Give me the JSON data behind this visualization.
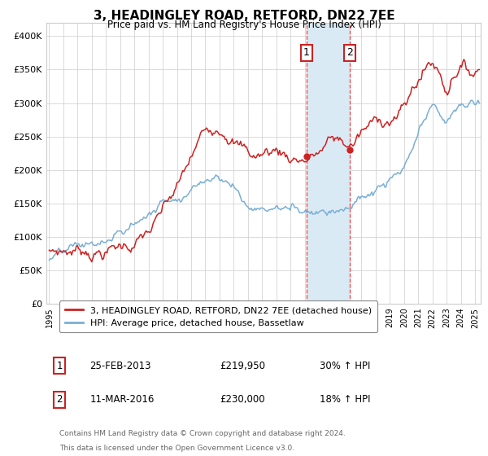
{
  "title": "3, HEADINGLEY ROAD, RETFORD, DN22 7EE",
  "subtitle": "Price paid vs. HM Land Registry's House Price Index (HPI)",
  "ylabel_ticks": [
    "£0",
    "£50K",
    "£100K",
    "£150K",
    "£200K",
    "£250K",
    "£300K",
    "£350K",
    "£400K"
  ],
  "ytick_values": [
    0,
    50000,
    100000,
    150000,
    200000,
    250000,
    300000,
    350000,
    400000
  ],
  "ylim": [
    0,
    420000
  ],
  "xlim_start": 1994.8,
  "xlim_end": 2025.4,
  "transaction1_date": 2013.13,
  "transaction1_price": 219950,
  "transaction1_label": "1",
  "transaction1_text": "25-FEB-2013",
  "transaction1_amount": "£219,950",
  "transaction1_hpi": "30% ↑ HPI",
  "transaction2_date": 2016.19,
  "transaction2_price": 230000,
  "transaction2_label": "2",
  "transaction2_text": "11-MAR-2016",
  "transaction2_amount": "£230,000",
  "transaction2_hpi": "18% ↑ HPI",
  "shade_color": "#daeaf5",
  "dashed_color": "#ee4444",
  "red_line_color": "#cc2222",
  "blue_line_color": "#7aafd4",
  "legend_label1": "3, HEADINGLEY ROAD, RETFORD, DN22 7EE (detached house)",
  "legend_label2": "HPI: Average price, detached house, Bassetlaw",
  "footer1": "Contains HM Land Registry data © Crown copyright and database right 2024.",
  "footer2": "This data is licensed under the Open Government Licence v3.0.",
  "background_color": "#ffffff",
  "grid_color": "#cccccc"
}
